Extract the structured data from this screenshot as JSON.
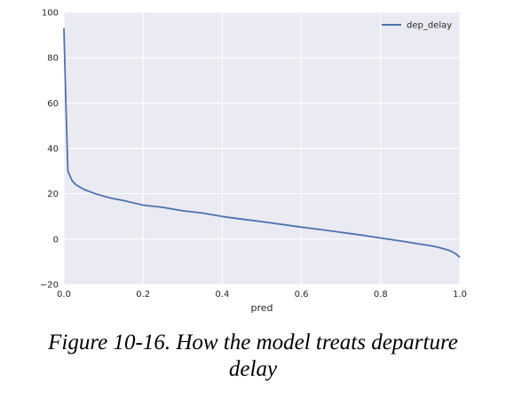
{
  "chart_data": {
    "type": "line",
    "xlabel": "pred",
    "ylabel": "",
    "xlim": [
      0.0,
      1.0
    ],
    "ylim": [
      -20,
      100
    ],
    "xticks": [
      0.0,
      0.2,
      0.4,
      0.6,
      0.8,
      1.0
    ],
    "xtick_labels": [
      "0.0",
      "0.2",
      "0.4",
      "0.6",
      "0.8",
      "1.0"
    ],
    "yticks": [
      -20,
      0,
      20,
      40,
      60,
      80,
      100
    ],
    "ytick_labels": [
      "−20",
      "0",
      "20",
      "40",
      "60",
      "80",
      "100"
    ],
    "grid": true,
    "legend_position": "top-right",
    "series": [
      {
        "name": "dep_delay",
        "color": "#4c72b0",
        "x": [
          0.0,
          0.005,
          0.01,
          0.02,
          0.03,
          0.05,
          0.08,
          0.1,
          0.12,
          0.15,
          0.2,
          0.25,
          0.3,
          0.35,
          0.4,
          0.45,
          0.5,
          0.55,
          0.6,
          0.65,
          0.7,
          0.75,
          0.8,
          0.85,
          0.9,
          0.93,
          0.95,
          0.97,
          0.98,
          0.99,
          1.0
        ],
        "y": [
          93,
          60,
          30,
          26,
          24,
          22,
          20,
          19,
          18,
          17,
          15,
          14,
          12.5,
          11.5,
          10,
          8.8,
          7.7,
          6.5,
          5.3,
          4.2,
          3,
          1.8,
          0.5,
          -0.8,
          -2.2,
          -3,
          -3.8,
          -4.8,
          -5.5,
          -6.5,
          -8
        ]
      }
    ],
    "background": "#eaeaf2",
    "grid_color": "#ffffff"
  },
  "caption": {
    "line1": "Figure 10-16. How the model treats departure",
    "line2": "delay"
  }
}
